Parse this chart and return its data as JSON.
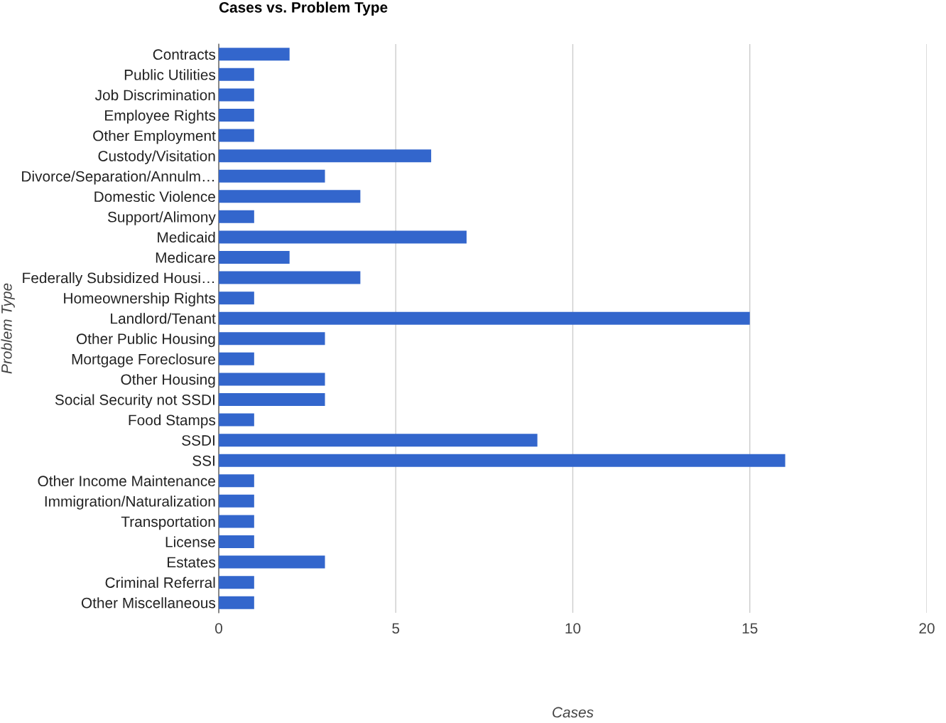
{
  "chart_data": {
    "type": "bar",
    "orientation": "horizontal",
    "title": "Cases vs. Problem Type",
    "xlabel": "Cases",
    "ylabel": "Problem Type",
    "categories": [
      "Contracts",
      "Public Utilities",
      "Job Discrimination",
      "Employee Rights",
      "Other Employment",
      "Custody/Visitation",
      "Divorce/Separation/Annulm…",
      "Domestic Violence",
      "Support/Alimony",
      "Medicaid",
      "Medicare",
      "Federally Subsidized Housi…",
      "Homeownership Rights",
      "Landlord/Tenant",
      "Other Public Housing",
      "Mortgage Foreclosure",
      "Other Housing",
      "Social Security not SSDI",
      "Food Stamps",
      "SSDI",
      "SSI",
      "Other Income Maintenance",
      "Immigration/Naturalization",
      "Transportation",
      "License",
      "Estates",
      "Criminal Referral",
      "Other Miscellaneous"
    ],
    "values": [
      2,
      1,
      1,
      1,
      1,
      6,
      3,
      4,
      1,
      7,
      2,
      4,
      1,
      15,
      3,
      1,
      3,
      3,
      1,
      9,
      16,
      1,
      1,
      1,
      1,
      3,
      1,
      1
    ],
    "color": "#3366cc",
    "xlim": [
      0,
      20
    ],
    "xticks": [
      0,
      5,
      10,
      15,
      20
    ],
    "grid": "x",
    "legend": false
  }
}
